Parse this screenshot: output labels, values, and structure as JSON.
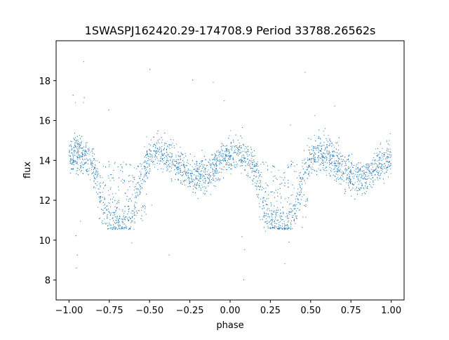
{
  "chart_data": {
    "type": "scatter",
    "title": "1SWASPJ162420.29-174708.9 Period 33788.26562s",
    "xlabel": "phase",
    "ylabel": "flux",
    "xlim": [
      -1.08,
      1.08
    ],
    "ylim": [
      7.0,
      20.0
    ],
    "x_ticks": [
      -1.0,
      -0.75,
      -0.5,
      -0.25,
      0.0,
      0.25,
      0.5,
      0.75,
      1.0
    ],
    "x_tick_labels": [
      "−1.00",
      "−0.75",
      "−0.50",
      "−0.25",
      "0.00",
      "0.25",
      "0.50",
      "0.75",
      "1.00"
    ],
    "y_ticks": [
      8,
      10,
      12,
      14,
      16,
      18
    ],
    "y_tick_labels": [
      "8",
      "10",
      "12",
      "14",
      "16",
      "18"
    ],
    "grid": false,
    "point_color": "#1f77b4",
    "phased_light_curve": {
      "x_range": [
        -1.0,
        1.0
      ],
      "period_in_phase": 1.0,
      "profile": {
        "phase": [
          0.0,
          0.05,
          0.1,
          0.15,
          0.2,
          0.25,
          0.3,
          0.35,
          0.4,
          0.45,
          0.5,
          0.55,
          0.6,
          0.65,
          0.7,
          0.75,
          0.8,
          0.85,
          0.9,
          0.95,
          1.0
        ],
        "upper_flux": [
          14.3,
          14.4,
          14.2,
          13.7,
          12.0,
          11.0,
          10.9,
          10.9,
          11.2,
          13.6,
          14.2,
          14.4,
          14.3,
          14.0,
          13.6,
          13.3,
          13.2,
          13.3,
          13.6,
          14.0,
          14.3
        ],
        "eclipse_floor_flux": 10.8,
        "scatter_spread": 0.45
      }
    }
  }
}
